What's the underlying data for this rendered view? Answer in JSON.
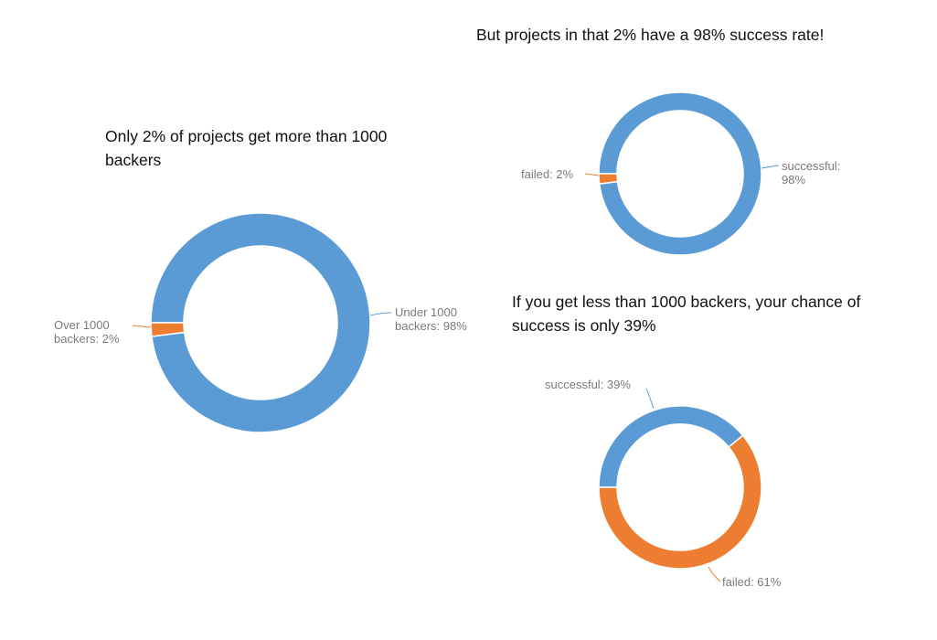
{
  "colors": {
    "blue": "#5b9bd5",
    "orange": "#ed7d31",
    "label": "#7a7a7a"
  },
  "chart_data": [
    {
      "type": "pie",
      "donut": true,
      "title": "Only 2% of projects get more than 1000 backers",
      "slices": [
        {
          "label": "Under 1000 backers: 98%",
          "value": 98,
          "color": "#5b9bd5"
        },
        {
          "label": "Over 1000 backers: 2%",
          "value": 2,
          "color": "#ed7d31"
        }
      ]
    },
    {
      "type": "pie",
      "donut": true,
      "title": "But projects in that 2% have a 98% success rate!",
      "slices": [
        {
          "label": "successful: 98%",
          "value": 98,
          "color": "#5b9bd5"
        },
        {
          "label": "failed: 2%",
          "value": 2,
          "color": "#ed7d31"
        }
      ]
    },
    {
      "type": "pie",
      "donut": true,
      "title": "If you get less than 1000 backers, your chance of success is only 39%",
      "slices": [
        {
          "label": "successful: 39%",
          "value": 39,
          "color": "#5b9bd5"
        },
        {
          "label": "failed: 61%",
          "value": 61,
          "color": "#ed7d31"
        }
      ]
    }
  ]
}
